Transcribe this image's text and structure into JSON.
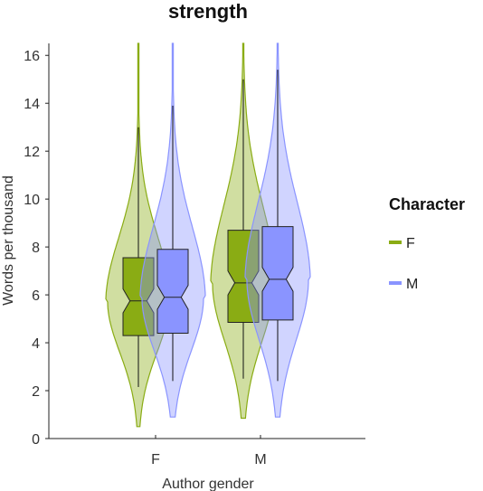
{
  "chart_data": {
    "type": "violin",
    "title": "strength",
    "xlabel": "Author gender",
    "ylabel": "Words per thousand",
    "categories": [
      "F",
      "M"
    ],
    "ylim": [
      0,
      16.5
    ],
    "yticks": [
      0,
      2,
      4,
      6,
      8,
      10,
      12,
      14,
      16
    ],
    "grid": false,
    "legend": {
      "title": "Character",
      "position": "right",
      "entries": [
        {
          "label": "F",
          "color": "#8aac14"
        },
        {
          "label": "M",
          "color": "#8a94ff"
        }
      ]
    },
    "series": [
      {
        "name": "F",
        "color": "#8aac14",
        "groups": [
          {
            "category": "F",
            "q1": 4.3,
            "median": 5.75,
            "q3": 7.55,
            "notch_low": 5.25,
            "notch_high": 6.25,
            "whisker_low": 2.15,
            "whisker_high": 13.0,
            "min": 0.5,
            "max": 16.5
          },
          {
            "category": "M",
            "q1": 4.85,
            "median": 6.5,
            "q3": 8.7,
            "notch_low": 6.0,
            "notch_high": 7.0,
            "whisker_low": 2.5,
            "whisker_high": 15.0,
            "min": 0.85,
            "max": 16.5
          }
        ]
      },
      {
        "name": "M",
        "color": "#8a94ff",
        "groups": [
          {
            "category": "F",
            "q1": 4.4,
            "median": 5.9,
            "q3": 7.9,
            "notch_low": 5.4,
            "notch_high": 6.4,
            "whisker_low": 2.4,
            "whisker_high": 13.9,
            "min": 0.9,
            "max": 16.5
          },
          {
            "category": "M",
            "q1": 4.95,
            "median": 6.65,
            "q3": 8.85,
            "notch_low": 6.15,
            "notch_high": 7.15,
            "whisker_low": 2.4,
            "whisker_high": 15.4,
            "min": 0.9,
            "max": 16.5
          }
        ]
      }
    ]
  }
}
